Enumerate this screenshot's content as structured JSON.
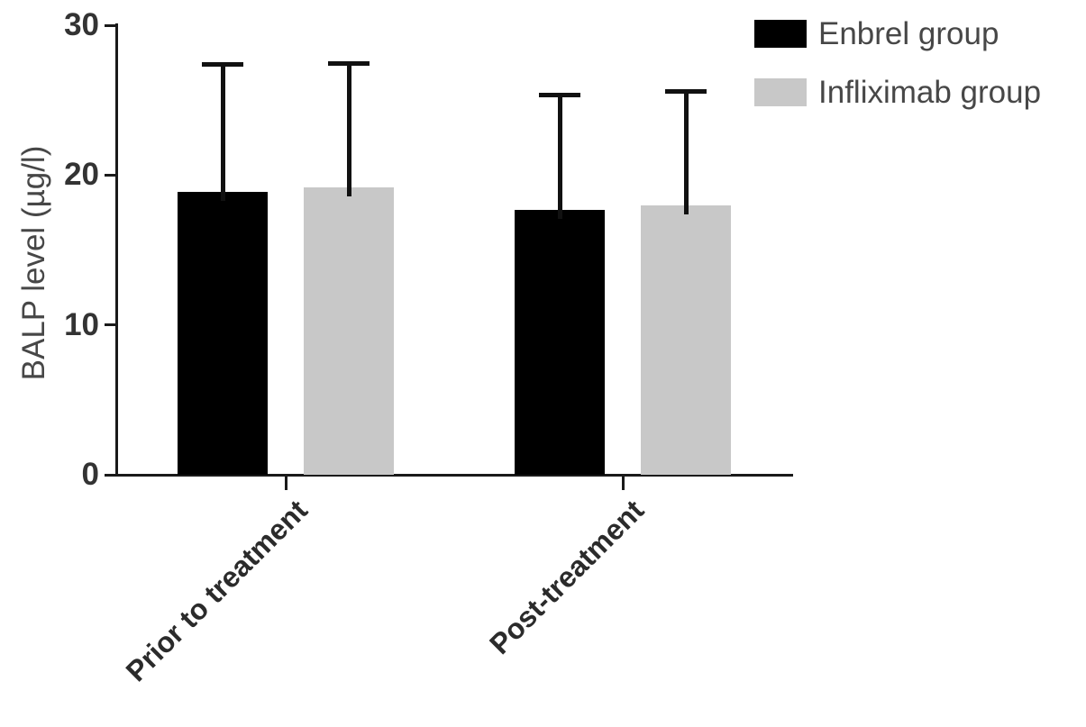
{
  "chart_data": {
    "type": "bar",
    "title": "",
    "xlabel": "",
    "ylabel": "BALP level (µg/l)",
    "categories": [
      "Prior to treatment",
      "Post-treatment"
    ],
    "series": [
      {
        "name": "Enbrel group",
        "color": "#000000",
        "values": [
          18.9,
          17.7
        ],
        "errors": [
          8.5,
          7.7
        ]
      },
      {
        "name": "Infliximab group",
        "color": "#c8c8c8",
        "values": [
          19.2,
          18.0
        ],
        "errors": [
          8.3,
          7.6
        ]
      }
    ],
    "ylim": [
      0,
      30
    ],
    "yticks": [
      0,
      10,
      20,
      30
    ],
    "error_bars": "upper-only",
    "grid": false,
    "legend_position": "top-right",
    "background": "#ffffff"
  }
}
